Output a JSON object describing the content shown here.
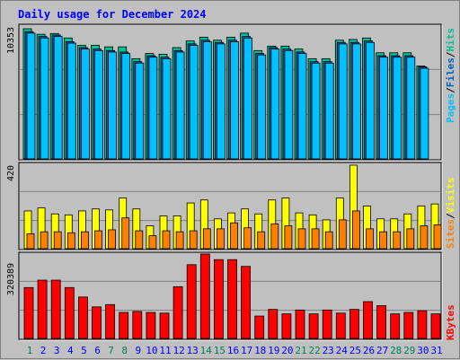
{
  "title": "Daily usage for December 2024",
  "colors": {
    "hits": "#00c090",
    "files": "#0060c0",
    "pages": "#00c0ff",
    "visits": "#ffff00",
    "sites": "#ff8000",
    "kbytes": "#ff0000",
    "weekend_day": "#00805c",
    "weekday": "#0000ff",
    "panel_bg": "#c0c0c0"
  },
  "chart_data": [
    {
      "type": "bar",
      "name": "hits-files-pages",
      "categories": [
        "1",
        "2",
        "3",
        "4",
        "5",
        "6",
        "7",
        "8",
        "9",
        "10",
        "11",
        "12",
        "13",
        "14",
        "15",
        "16",
        "17",
        "18",
        "19",
        "20",
        "21",
        "22",
        "23",
        "24",
        "25",
        "26",
        "27",
        "28",
        "29",
        "30",
        "31"
      ],
      "weekend_days": [
        "1",
        "7",
        "8",
        "14",
        "15",
        "21",
        "22",
        "28",
        "29"
      ],
      "ymax_label": "10353",
      "ylim": [
        0,
        10353
      ],
      "series": [
        {
          "name": "Hits",
          "values": [
            10353,
            9914,
            9972,
            9617,
            9029,
            9029,
            8912,
            8912,
            7972,
            8383,
            8325,
            8852,
            9382,
            9676,
            9441,
            9676,
            10003,
            8617,
            8971,
            8971,
            8737,
            7972,
            7972,
            9441,
            9499,
            9617,
            8442,
            8442,
            8442,
            7385,
            0
          ]
        },
        {
          "name": "Files",
          "values": [
            10120,
            9736,
            9853,
            9324,
            8852,
            8734,
            8617,
            8500,
            7737,
            8207,
            8090,
            8617,
            9147,
            9441,
            9265,
            9441,
            9735,
            8383,
            8853,
            8735,
            8500,
            7735,
            7735,
            9265,
            9265,
            9382,
            8207,
            8207,
            8207,
            7326,
            0
          ]
        },
        {
          "name": "Pages",
          "values": [
            10003,
            9618,
            9735,
            9206,
            8735,
            8617,
            8500,
            8383,
            7620,
            8090,
            7972,
            8500,
            9029,
            9324,
            9147,
            9324,
            9617,
            8266,
            8735,
            8617,
            8383,
            7620,
            7620,
            9147,
            9147,
            9265,
            8090,
            8090,
            8090,
            7209,
            0
          ]
        }
      ]
    },
    {
      "type": "bar",
      "name": "visits-sites",
      "categories": [
        "1",
        "2",
        "3",
        "4",
        "5",
        "6",
        "7",
        "8",
        "9",
        "10",
        "11",
        "12",
        "13",
        "14",
        "15",
        "16",
        "17",
        "18",
        "19",
        "20",
        "21",
        "22",
        "23",
        "24",
        "25",
        "26",
        "27",
        "28",
        "29",
        "30",
        "31"
      ],
      "ymax_label": "420",
      "ylim": [
        0,
        420
      ],
      "series": [
        {
          "name": "Visits",
          "values": [
            190,
            205,
            175,
            170,
            190,
            200,
            195,
            255,
            200,
            115,
            165,
            165,
            230,
            245,
            150,
            180,
            200,
            175,
            245,
            255,
            180,
            170,
            145,
            255,
            420,
            215,
            150,
            150,
            175,
            215,
            225
          ]
        },
        {
          "name": "Sites",
          "values": [
            75,
            85,
            85,
            80,
            85,
            90,
            95,
            155,
            90,
            65,
            90,
            85,
            90,
            100,
            100,
            130,
            105,
            85,
            125,
            115,
            100,
            100,
            85,
            145,
            190,
            100,
            85,
            85,
            100,
            115,
            120
          ]
        }
      ]
    },
    {
      "type": "bar",
      "name": "kbytes",
      "categories": [
        "1",
        "2",
        "3",
        "4",
        "5",
        "6",
        "7",
        "8",
        "9",
        "10",
        "11",
        "12",
        "13",
        "14",
        "15",
        "16",
        "17",
        "18",
        "19",
        "20",
        "21",
        "22",
        "23",
        "24",
        "25",
        "26",
        "27",
        "28",
        "29",
        "30",
        "31"
      ],
      "ymax_label": "320389",
      "ylim": [
        0,
        320389
      ],
      "series": [
        {
          "name": "KBytes",
          "values": [
            193310,
            221350,
            221350,
            193310,
            157330,
            119800,
            128560,
            98700,
            102540,
            98700,
            96150,
            196560,
            280100,
            320389,
            299250,
            299250,
            273600,
            85000,
            110290,
            93300,
            107940,
            93300,
            107940,
            96150,
            110290,
            139770,
            124610,
            93300,
            98700,
            105240,
            93300
          ]
        }
      ]
    }
  ],
  "right_labels": {
    "top": [
      "Pages",
      "Files",
      "Hits"
    ],
    "middle": [
      "Sites",
      "Visits"
    ],
    "bottom": [
      "KBytes"
    ],
    "separator": "/"
  }
}
